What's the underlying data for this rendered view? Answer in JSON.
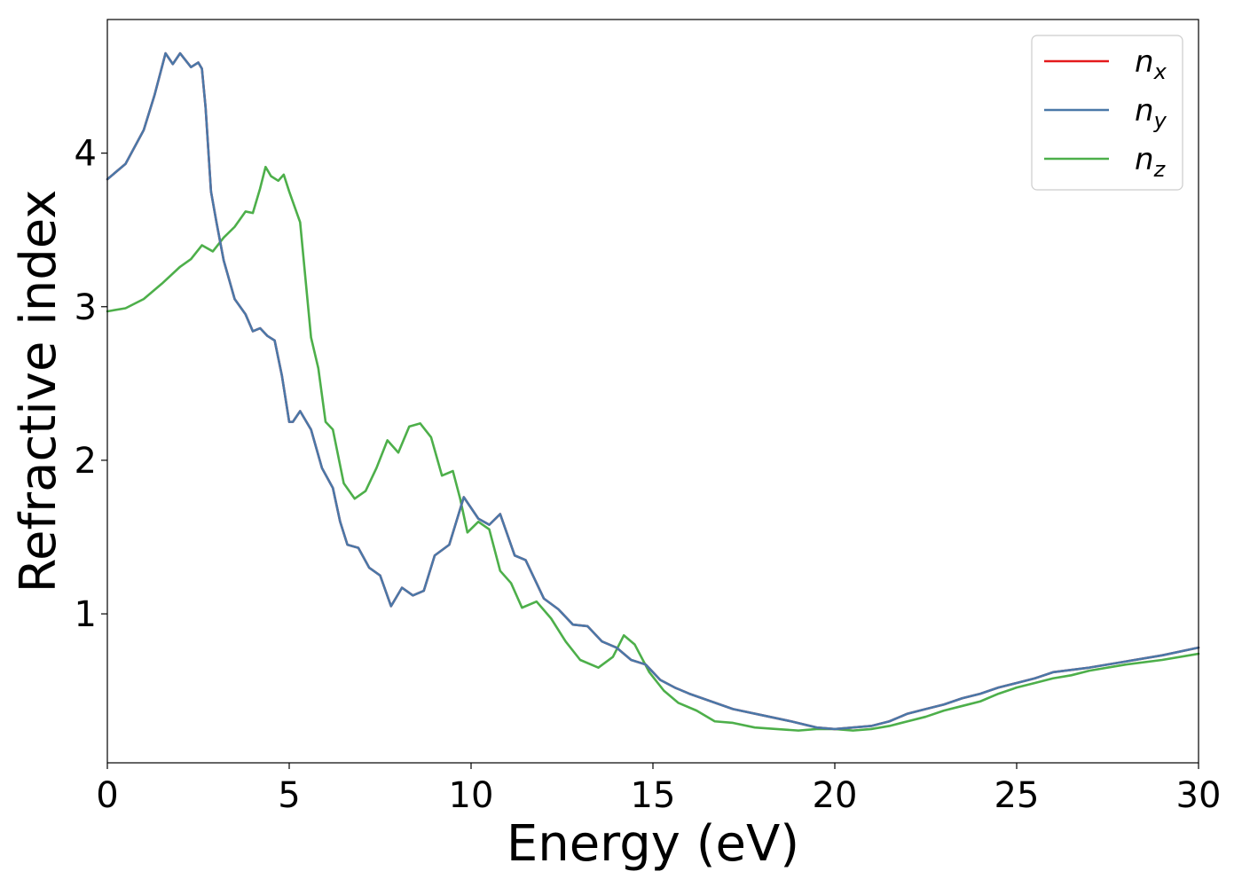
{
  "chart_data": {
    "type": "line",
    "title": "",
    "xlabel": "Energy (eV)",
    "ylabel": "Refractive index",
    "xlim": [
      0,
      30
    ],
    "ylim": [
      0.03,
      4.87
    ],
    "xticks": [
      0,
      5,
      10,
      15,
      20,
      25,
      30
    ],
    "yticks": [
      1,
      2,
      3,
      4
    ],
    "grid": false,
    "legend_position": "top-right",
    "series": [
      {
        "name": "n",
        "subscript": "x",
        "color": "#e41a1c",
        "x": [
          0,
          0.5,
          1.0,
          1.3,
          1.6,
          1.8,
          2.0,
          2.1,
          2.3,
          2.5,
          2.6,
          2.7,
          2.85,
          3.0,
          3.2,
          3.5,
          3.8,
          4.0,
          4.2,
          4.4,
          4.6,
          4.8,
          5.0,
          5.1,
          5.3,
          5.6,
          5.9,
          6.2,
          6.4,
          6.6,
          6.9,
          7.2,
          7.5,
          7.8,
          8.1,
          8.4,
          8.7,
          9.0,
          9.4,
          9.8,
          10.2,
          10.5,
          10.8,
          11.2,
          11.5,
          12.0,
          12.4,
          12.8,
          13.2,
          13.6,
          14.0,
          14.4,
          14.8,
          15.2,
          15.6,
          16.0,
          16.6,
          17.2,
          18.0,
          18.8,
          19.5,
          20.0,
          20.5,
          21.0,
          21.5,
          22.0,
          22.5,
          23.0,
          23.5,
          24.0,
          24.5,
          25.0,
          25.5,
          26.0,
          27.0,
          28.0,
          29.0,
          30.0
        ],
        "y": [
          3.83,
          3.93,
          4.15,
          4.38,
          4.65,
          4.58,
          4.65,
          4.62,
          4.56,
          4.59,
          4.55,
          4.3,
          3.75,
          3.55,
          3.3,
          3.05,
          2.95,
          2.84,
          2.86,
          2.81,
          2.78,
          2.55,
          2.25,
          2.25,
          2.32,
          2.2,
          1.95,
          1.82,
          1.6,
          1.45,
          1.43,
          1.3,
          1.25,
          1.05,
          1.17,
          1.12,
          1.15,
          1.38,
          1.45,
          1.76,
          1.62,
          1.58,
          1.65,
          1.38,
          1.35,
          1.1,
          1.03,
          0.93,
          0.92,
          0.82,
          0.78,
          0.7,
          0.67,
          0.57,
          0.52,
          0.48,
          0.43,
          0.38,
          0.34,
          0.3,
          0.26,
          0.25,
          0.26,
          0.27,
          0.3,
          0.35,
          0.38,
          0.41,
          0.45,
          0.48,
          0.52,
          0.55,
          0.58,
          0.62,
          0.65,
          0.69,
          0.73,
          0.78
        ]
      },
      {
        "name": "n",
        "subscript": "y",
        "color": "#4a78a8",
        "x": [
          0,
          0.5,
          1.0,
          1.3,
          1.6,
          1.8,
          2.0,
          2.1,
          2.3,
          2.5,
          2.6,
          2.7,
          2.85,
          3.0,
          3.2,
          3.5,
          3.8,
          4.0,
          4.2,
          4.4,
          4.6,
          4.8,
          5.0,
          5.1,
          5.3,
          5.6,
          5.9,
          6.2,
          6.4,
          6.6,
          6.9,
          7.2,
          7.5,
          7.8,
          8.1,
          8.4,
          8.7,
          9.0,
          9.4,
          9.8,
          10.2,
          10.5,
          10.8,
          11.2,
          11.5,
          12.0,
          12.4,
          12.8,
          13.2,
          13.6,
          14.0,
          14.4,
          14.8,
          15.2,
          15.6,
          16.0,
          16.6,
          17.2,
          18.0,
          18.8,
          19.5,
          20.0,
          20.5,
          21.0,
          21.5,
          22.0,
          22.5,
          23.0,
          23.5,
          24.0,
          24.5,
          25.0,
          25.5,
          26.0,
          27.0,
          28.0,
          29.0,
          30.0
        ],
        "y": [
          3.83,
          3.93,
          4.15,
          4.38,
          4.65,
          4.58,
          4.65,
          4.62,
          4.56,
          4.59,
          4.55,
          4.3,
          3.75,
          3.55,
          3.3,
          3.05,
          2.95,
          2.84,
          2.86,
          2.81,
          2.78,
          2.55,
          2.25,
          2.25,
          2.32,
          2.2,
          1.95,
          1.82,
          1.6,
          1.45,
          1.43,
          1.3,
          1.25,
          1.05,
          1.17,
          1.12,
          1.15,
          1.38,
          1.45,
          1.76,
          1.62,
          1.58,
          1.65,
          1.38,
          1.35,
          1.1,
          1.03,
          0.93,
          0.92,
          0.82,
          0.78,
          0.7,
          0.67,
          0.57,
          0.52,
          0.48,
          0.43,
          0.38,
          0.34,
          0.3,
          0.26,
          0.25,
          0.26,
          0.27,
          0.3,
          0.35,
          0.38,
          0.41,
          0.45,
          0.48,
          0.52,
          0.55,
          0.58,
          0.62,
          0.65,
          0.69,
          0.73,
          0.78
        ]
      },
      {
        "name": "n",
        "subscript": "z",
        "color": "#4daf4a",
        "x": [
          0,
          0.5,
          1.0,
          1.5,
          2.0,
          2.3,
          2.6,
          2.9,
          3.2,
          3.5,
          3.8,
          4.0,
          4.2,
          4.35,
          4.5,
          4.7,
          4.85,
          5.0,
          5.3,
          5.6,
          5.8,
          6.0,
          6.2,
          6.5,
          6.8,
          7.1,
          7.4,
          7.7,
          8.0,
          8.3,
          8.6,
          8.9,
          9.2,
          9.5,
          9.7,
          9.9,
          10.2,
          10.5,
          10.8,
          11.1,
          11.4,
          11.8,
          12.2,
          12.6,
          13.0,
          13.5,
          13.9,
          14.2,
          14.5,
          14.9,
          15.3,
          15.7,
          16.2,
          16.7,
          17.2,
          17.8,
          18.4,
          19.0,
          19.5,
          20.0,
          20.5,
          21.0,
          21.5,
          22.0,
          22.5,
          23.0,
          23.5,
          24.0,
          24.5,
          25.0,
          25.5,
          26.0,
          26.5,
          27.0,
          28.0,
          29.0,
          30.0
        ],
        "y": [
          2.97,
          2.99,
          3.05,
          3.15,
          3.26,
          3.31,
          3.4,
          3.36,
          3.45,
          3.52,
          3.62,
          3.61,
          3.77,
          3.91,
          3.85,
          3.82,
          3.86,
          3.75,
          3.55,
          2.8,
          2.6,
          2.25,
          2.2,
          1.85,
          1.75,
          1.8,
          1.95,
          2.13,
          2.05,
          2.22,
          2.24,
          2.15,
          1.9,
          1.93,
          1.75,
          1.53,
          1.6,
          1.55,
          1.28,
          1.2,
          1.04,
          1.08,
          0.97,
          0.82,
          0.7,
          0.65,
          0.72,
          0.86,
          0.8,
          0.62,
          0.5,
          0.42,
          0.37,
          0.3,
          0.29,
          0.26,
          0.25,
          0.24,
          0.25,
          0.25,
          0.24,
          0.25,
          0.27,
          0.3,
          0.33,
          0.37,
          0.4,
          0.43,
          0.48,
          0.52,
          0.55,
          0.58,
          0.6,
          0.63,
          0.67,
          0.7,
          0.74
        ]
      }
    ]
  }
}
